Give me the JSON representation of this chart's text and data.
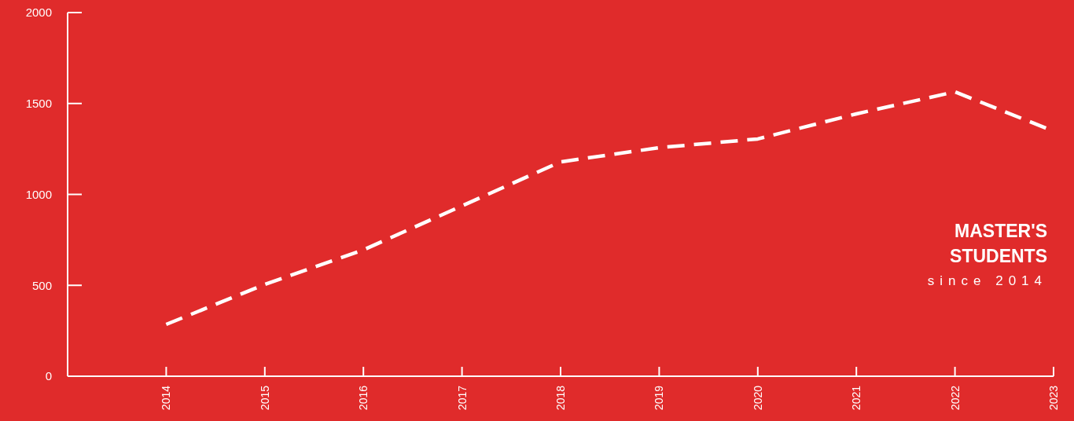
{
  "chart_data": {
    "type": "line",
    "title": "MASTER'S STUDENTS",
    "subtitle": "since 2014",
    "x": [
      2014,
      2015,
      2016,
      2017,
      2018,
      2019,
      2020,
      2021,
      2022,
      2023
    ],
    "series": [
      {
        "color": "#ffffff",
        "values": [
          285,
          505,
          695,
          937,
          1179,
          1257,
          1305,
          1443,
          1564,
          1348
        ]
      }
    ],
    "xlim": [
      2013,
      2023
    ],
    "xticks": [
      2014,
      2015,
      2016,
      2017,
      2018,
      2019,
      2020,
      2021,
      2022,
      2023
    ],
    "ylim": [
      0,
      2000
    ],
    "yticks": [
      0,
      500,
      1000,
      1500,
      2000
    ],
    "grid": false,
    "marker": "none",
    "line_style": "dashed"
  }
}
